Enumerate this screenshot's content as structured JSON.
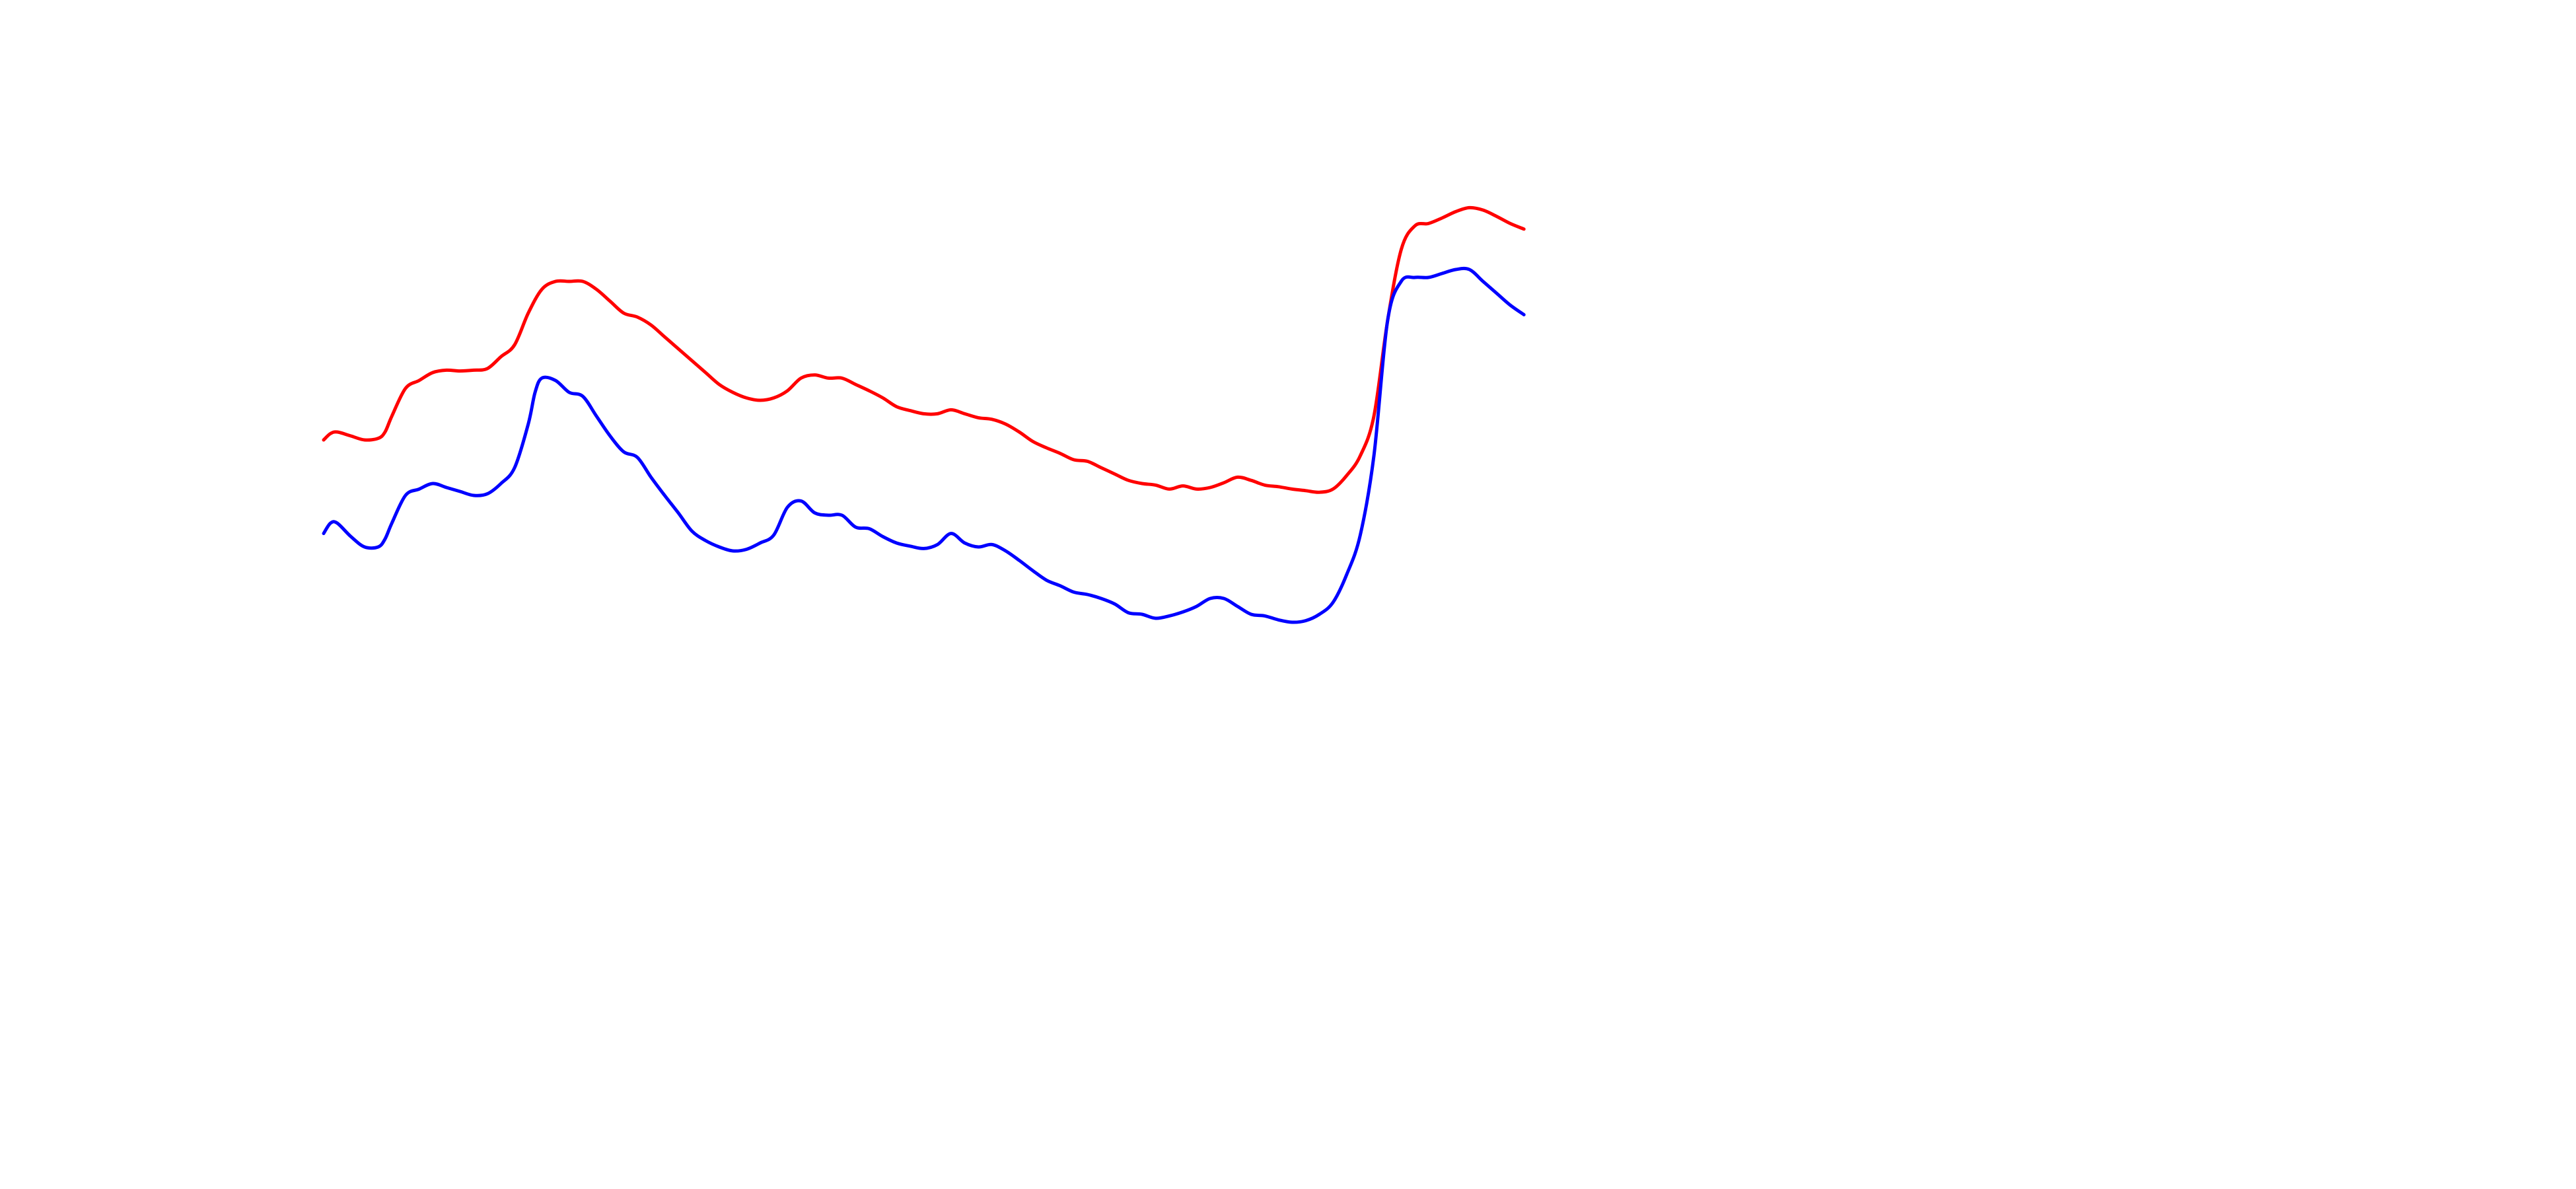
{
  "chart_data": {
    "type": "line",
    "title": "",
    "xlabel": "",
    "ylabel": "",
    "grid": false,
    "axes_visible": false,
    "legend": "none",
    "xlim": [
      0,
      100
    ],
    "ylim": [
      0,
      100
    ],
    "series": [
      {
        "color": "#ff0000",
        "points": [
          [
            0.0,
            57.0
          ],
          [
            0.5,
            57.8
          ],
          [
            1.0,
            58.0
          ],
          [
            2.0,
            57.5
          ],
          [
            3.0,
            57.0
          ],
          [
            4.0,
            57.2
          ],
          [
            4.5,
            58.0
          ],
          [
            5.0,
            60.0
          ],
          [
            6.0,
            63.5
          ],
          [
            7.0,
            64.5
          ],
          [
            8.0,
            65.5
          ],
          [
            9.0,
            65.8
          ],
          [
            10.0,
            65.7
          ],
          [
            11.0,
            65.8
          ],
          [
            12.0,
            66.0
          ],
          [
            13.0,
            67.5
          ],
          [
            14.0,
            69.0
          ],
          [
            15.0,
            73.0
          ],
          [
            16.0,
            76.0
          ],
          [
            17.0,
            77.0
          ],
          [
            18.0,
            77.0
          ],
          [
            19.0,
            77.0
          ],
          [
            20.0,
            76.0
          ],
          [
            21.0,
            74.5
          ],
          [
            22.0,
            73.0
          ],
          [
            23.0,
            72.5
          ],
          [
            24.0,
            71.5
          ],
          [
            25.0,
            70.0
          ],
          [
            26.0,
            68.5
          ],
          [
            27.0,
            67.0
          ],
          [
            28.0,
            65.5
          ],
          [
            29.0,
            64.0
          ],
          [
            30.0,
            63.0
          ],
          [
            31.0,
            62.3
          ],
          [
            32.0,
            62.0
          ],
          [
            33.0,
            62.3
          ],
          [
            34.0,
            63.2
          ],
          [
            35.0,
            64.8
          ],
          [
            36.0,
            65.2
          ],
          [
            37.0,
            64.8
          ],
          [
            38.0,
            64.8
          ],
          [
            39.0,
            64.0
          ],
          [
            40.0,
            63.2
          ],
          [
            41.0,
            62.3
          ],
          [
            42.0,
            61.2
          ],
          [
            43.0,
            60.7
          ],
          [
            44.0,
            60.3
          ],
          [
            45.0,
            60.3
          ],
          [
            46.0,
            60.8
          ],
          [
            47.0,
            60.3
          ],
          [
            48.0,
            59.8
          ],
          [
            49.0,
            59.6
          ],
          [
            50.0,
            59.0
          ],
          [
            51.0,
            58.0
          ],
          [
            52.0,
            56.8
          ],
          [
            53.0,
            56.0
          ],
          [
            54.0,
            55.3
          ],
          [
            55.0,
            54.5
          ],
          [
            56.0,
            54.3
          ],
          [
            57.0,
            53.5
          ],
          [
            58.0,
            52.7
          ],
          [
            59.0,
            51.9
          ],
          [
            60.0,
            51.5
          ],
          [
            61.0,
            51.3
          ],
          [
            62.0,
            50.8
          ],
          [
            63.0,
            51.2
          ],
          [
            64.0,
            50.8
          ],
          [
            65.0,
            51.0
          ],
          [
            66.0,
            51.6
          ],
          [
            67.0,
            52.3
          ],
          [
            68.0,
            51.9
          ],
          [
            69.0,
            51.3
          ],
          [
            70.0,
            51.1
          ],
          [
            71.0,
            50.8
          ],
          [
            72.0,
            50.6
          ],
          [
            73.0,
            50.4
          ],
          [
            74.0,
            50.8
          ],
          [
            75.0,
            52.5
          ],
          [
            76.0,
            55.0
          ],
          [
            77.0,
            60.0
          ],
          [
            78.0,
            72.0
          ],
          [
            79.0,
            81.0
          ],
          [
            80.0,
            84.0
          ],
          [
            81.0,
            84.3
          ],
          [
            82.0,
            85.0
          ],
          [
            83.0,
            85.8
          ],
          [
            84.0,
            86.3
          ],
          [
            85.0,
            86.0
          ],
          [
            86.0,
            85.2
          ],
          [
            87.0,
            84.3
          ],
          [
            88.0,
            83.6
          ]
        ]
      },
      {
        "color": "#0000ff",
        "points": [
          [
            0.0,
            45.2
          ],
          [
            0.5,
            46.5
          ],
          [
            1.0,
            46.5
          ],
          [
            2.0,
            44.8
          ],
          [
            3.0,
            43.5
          ],
          [
            4.0,
            43.5
          ],
          [
            4.5,
            44.5
          ],
          [
            5.0,
            46.5
          ],
          [
            6.0,
            50.0
          ],
          [
            7.0,
            50.8
          ],
          [
            8.0,
            51.5
          ],
          [
            9.0,
            51.0
          ],
          [
            10.0,
            50.5
          ],
          [
            11.0,
            50.0
          ],
          [
            12.0,
            50.2
          ],
          [
            13.0,
            51.5
          ],
          [
            14.0,
            53.5
          ],
          [
            15.0,
            59.0
          ],
          [
            15.5,
            63.0
          ],
          [
            16.0,
            64.8
          ],
          [
            17.0,
            64.5
          ],
          [
            18.0,
            63.0
          ],
          [
            19.0,
            62.5
          ],
          [
            20.0,
            60.0
          ],
          [
            21.0,
            57.5
          ],
          [
            22.0,
            55.5
          ],
          [
            23.0,
            54.8
          ],
          [
            24.0,
            52.3
          ],
          [
            25.0,
            50.0
          ],
          [
            26.0,
            47.8
          ],
          [
            27.0,
            45.5
          ],
          [
            28.0,
            44.3
          ],
          [
            29.0,
            43.5
          ],
          [
            30.0,
            43.0
          ],
          [
            31.0,
            43.2
          ],
          [
            32.0,
            44.0
          ],
          [
            33.0,
            45.0
          ],
          [
            34.0,
            48.5
          ],
          [
            35.0,
            49.3
          ],
          [
            36.0,
            47.8
          ],
          [
            37.0,
            47.5
          ],
          [
            38.0,
            47.5
          ],
          [
            39.0,
            46.0
          ],
          [
            40.0,
            45.8
          ],
          [
            41.0,
            44.8
          ],
          [
            42.0,
            44.0
          ],
          [
            43.0,
            43.6
          ],
          [
            44.0,
            43.3
          ],
          [
            45.0,
            43.8
          ],
          [
            46.0,
            45.2
          ],
          [
            47.0,
            44.0
          ],
          [
            48.0,
            43.5
          ],
          [
            49.0,
            43.8
          ],
          [
            50.0,
            43.0
          ],
          [
            51.0,
            41.8
          ],
          [
            52.0,
            40.5
          ],
          [
            53.0,
            39.3
          ],
          [
            54.0,
            38.6
          ],
          [
            55.0,
            37.8
          ],
          [
            56.0,
            37.5
          ],
          [
            57.0,
            37.0
          ],
          [
            58.0,
            36.3
          ],
          [
            59.0,
            35.2
          ],
          [
            60.0,
            35.0
          ],
          [
            61.0,
            34.5
          ],
          [
            62.0,
            34.8
          ],
          [
            63.0,
            35.3
          ],
          [
            64.0,
            36.0
          ],
          [
            65.0,
            37.0
          ],
          [
            66.0,
            37.0
          ],
          [
            67.0,
            36.0
          ],
          [
            68.0,
            35.0
          ],
          [
            69.0,
            34.8
          ],
          [
            70.0,
            34.3
          ],
          [
            71.0,
            34.0
          ],
          [
            72.0,
            34.2
          ],
          [
            73.0,
            35.0
          ],
          [
            74.0,
            36.5
          ],
          [
            75.0,
            40.0
          ],
          [
            76.0,
            45.0
          ],
          [
            77.0,
            55.0
          ],
          [
            78.0,
            72.0
          ],
          [
            79.0,
            77.0
          ],
          [
            80.0,
            77.5
          ],
          [
            81.0,
            77.5
          ],
          [
            82.0,
            78.0
          ],
          [
            83.0,
            78.5
          ],
          [
            84.0,
            78.5
          ],
          [
            85.0,
            77.0
          ],
          [
            86.0,
            75.5
          ],
          [
            87.0,
            74.0
          ],
          [
            88.0,
            72.8
          ]
        ]
      }
    ]
  }
}
